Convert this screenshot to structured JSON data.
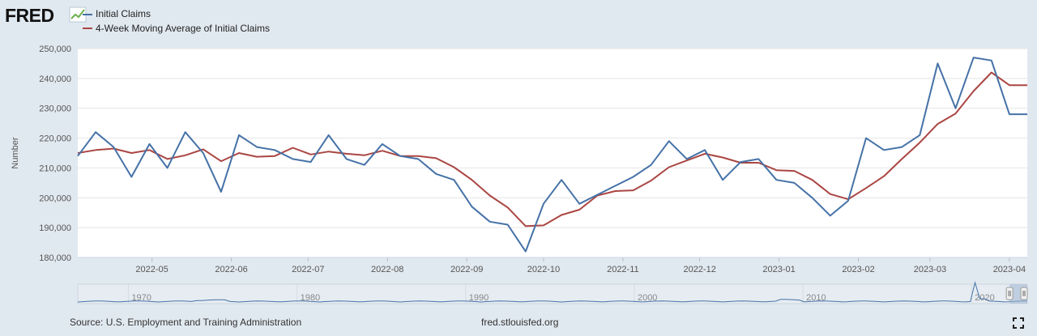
{
  "header": {
    "logo": "FRED",
    "logo_icon": "fred-chart-icon"
  },
  "chart_data": {
    "type": "line",
    "title": "",
    "xlabel": "",
    "ylabel": "Number",
    "ylim": [
      180000,
      250000
    ],
    "yticks": [
      180000,
      190000,
      200000,
      210000,
      220000,
      230000,
      240000,
      250000
    ],
    "ytick_labels": [
      "180,000",
      "190,000",
      "200,000",
      "210,000",
      "220,000",
      "230,000",
      "240,000",
      "250,000"
    ],
    "xlim": [
      "2022-04-02",
      "2023-04-08"
    ],
    "xtick_labels": [
      "2022-05",
      "2022-06",
      "2022-07",
      "2022-08",
      "2022-09",
      "2022-10",
      "2022-11",
      "2022-12",
      "2023-01",
      "2023-02",
      "2023-03",
      "2023-04"
    ],
    "xtick_dates": [
      "2022-05-01",
      "2022-06-01",
      "2022-07-01",
      "2022-08-01",
      "2022-09-01",
      "2022-10-01",
      "2022-11-01",
      "2022-12-01",
      "2023-01-01",
      "2023-02-01",
      "2023-03-01",
      "2023-04-01"
    ],
    "x": [
      "2022-04-02",
      "2022-04-09",
      "2022-04-16",
      "2022-04-23",
      "2022-04-30",
      "2022-05-07",
      "2022-05-14",
      "2022-05-21",
      "2022-05-28",
      "2022-06-04",
      "2022-06-11",
      "2022-06-18",
      "2022-06-25",
      "2022-07-02",
      "2022-07-09",
      "2022-07-16",
      "2022-07-23",
      "2022-07-30",
      "2022-08-06",
      "2022-08-13",
      "2022-08-20",
      "2022-08-27",
      "2022-09-03",
      "2022-09-10",
      "2022-09-17",
      "2022-09-24",
      "2022-10-01",
      "2022-10-08",
      "2022-10-15",
      "2022-10-22",
      "2022-10-29",
      "2022-11-05",
      "2022-11-12",
      "2022-11-19",
      "2022-11-26",
      "2022-12-03",
      "2022-12-10",
      "2022-12-17",
      "2022-12-24",
      "2022-12-31",
      "2023-01-07",
      "2023-01-14",
      "2023-01-21",
      "2023-01-28",
      "2023-02-04",
      "2023-02-11",
      "2023-02-18",
      "2023-02-25",
      "2023-03-04",
      "2023-03-11",
      "2023-03-18",
      "2023-03-25",
      "2023-04-01",
      "2023-04-08"
    ],
    "series": [
      {
        "name": "Initial Claims",
        "color": "#4572a7",
        "values": [
          214000,
          222000,
          217000,
          207000,
          218000,
          210000,
          222000,
          215000,
          202000,
          221000,
          217000,
          216000,
          213000,
          212000,
          221000,
          213000,
          211000,
          218000,
          214000,
          213000,
          208000,
          206000,
          197000,
          192000,
          191000,
          182000,
          198000,
          206000,
          198000,
          201000,
          204000,
          207000,
          211000,
          219000,
          213000,
          216000,
          206000,
          212000,
          213000,
          206000,
          205000,
          200000,
          194000,
          199000,
          220000,
          216000,
          217000,
          221000,
          245000,
          230000,
          247000,
          246000,
          228000,
          228000
        ]
      },
      {
        "name": "4-Week Moving Average of Initial Claims",
        "color": "#aa4643",
        "values": [
          215000,
          216000,
          216500,
          215000,
          216000,
          213000,
          214250,
          216250,
          212250,
          215000,
          213750,
          214000,
          216750,
          214500,
          215500,
          214750,
          214250,
          215750,
          214000,
          214000,
          213250,
          210250,
          206000,
          200750,
          196750,
          190500,
          190750,
          194250,
          196000,
          200750,
          202250,
          202500,
          205750,
          210250,
          212500,
          214750,
          213500,
          211750,
          211750,
          209250,
          209000,
          206000,
          201250,
          199500,
          203250,
          207250,
          213000,
          218500,
          224750,
          228250,
          235750,
          242000,
          237750,
          237750
        ]
      }
    ],
    "navigator": {
      "labels": [
        "1970",
        "1980",
        "1990",
        "2000",
        "2010",
        "2020"
      ],
      "label_years": [
        1970,
        1980,
        1990,
        2000,
        2010,
        2020
      ],
      "range": [
        1967,
        2023.3
      ],
      "selected": [
        2022.25,
        2023.3
      ]
    }
  },
  "footer": {
    "source": "Source: U.S. Employment and Training Administration",
    "site": "fred.stlouisfed.org",
    "fullscreen_icon": "fullscreen-icon"
  }
}
